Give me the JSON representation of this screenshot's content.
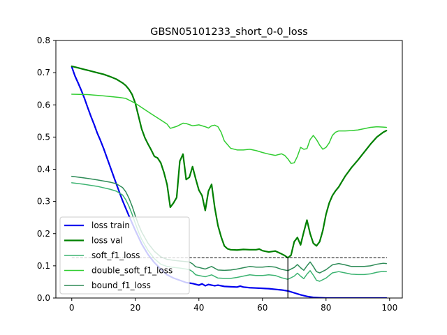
{
  "chart_data": {
    "type": "line",
    "title": "GBSN05101233_short_0-0_loss",
    "xlabel": "",
    "ylabel": "",
    "xlim": [
      -5,
      104
    ],
    "ylim": [
      0,
      0.8
    ],
    "xticks": [
      0,
      20,
      40,
      60,
      80,
      100
    ],
    "yticks": [
      0.0,
      0.1,
      0.2,
      0.3,
      0.4,
      0.5,
      0.6,
      0.7,
      0.8
    ],
    "xtick_labels": [
      "0",
      "20",
      "40",
      "60",
      "80",
      "100"
    ],
    "ytick_labels": [
      "0.0",
      "0.1",
      "0.2",
      "0.3",
      "0.4",
      "0.5",
      "0.6",
      "0.7",
      "0.8"
    ],
    "grid": false,
    "legend_position": "lower-left",
    "colors": {
      "loss_train": "#0000ee",
      "loss_val": "#008000",
      "soft_f1_loss": "#3cb371",
      "double_soft_f1_loss": "#32cd32",
      "bound_f1_loss": "#2e8b57",
      "reference": "#000000"
    },
    "reference_lines": {
      "horizontal_y": 0.125,
      "horizontal_x_start": 0,
      "vertical_x": 68
    },
    "series": [
      {
        "name": "loss train",
        "key": "loss_train",
        "x": [
          0,
          1,
          2,
          3,
          4,
          5,
          6,
          7,
          8,
          9,
          10,
          12,
          14,
          16,
          18,
          20,
          22,
          24,
          26,
          28,
          30,
          32,
          34,
          36,
          38,
          40,
          41,
          42,
          43,
          44,
          45,
          46,
          48,
          50,
          52,
          53,
          54,
          56,
          58,
          60,
          62,
          64,
          66,
          68,
          70,
          72,
          74,
          76,
          78,
          80,
          85,
          90,
          95,
          99
        ],
        "values": [
          0.718,
          0.69,
          0.668,
          0.645,
          0.62,
          0.592,
          0.565,
          0.54,
          0.513,
          0.49,
          0.465,
          0.41,
          0.355,
          0.302,
          0.255,
          0.21,
          0.168,
          0.135,
          0.11,
          0.09,
          0.072,
          0.062,
          0.055,
          0.048,
          0.045,
          0.04,
          0.044,
          0.038,
          0.042,
          0.04,
          0.038,
          0.04,
          0.036,
          0.035,
          0.034,
          0.037,
          0.034,
          0.032,
          0.031,
          0.03,
          0.029,
          0.027,
          0.025,
          0.022,
          0.016,
          0.01,
          0.005,
          0.002,
          0.001,
          0.0,
          0.0,
          0.0,
          0.0,
          0.0
        ]
      },
      {
        "name": "loss val",
        "key": "loss_val",
        "x": [
          0,
          2,
          4,
          6,
          8,
          10,
          12,
          14,
          16,
          17,
          18,
          19,
          20,
          21,
          22,
          23,
          24,
          25,
          26,
          27,
          28,
          29,
          30,
          31,
          32,
          33,
          34,
          35,
          36,
          37,
          38,
          39,
          40,
          41,
          42,
          43,
          44,
          45,
          46,
          47,
          48,
          49,
          50,
          52,
          54,
          56,
          58,
          59,
          60,
          62,
          64,
          66,
          67,
          68,
          69,
          70,
          71,
          72,
          73,
          74,
          75,
          76,
          77,
          78,
          79,
          80,
          81,
          82,
          83,
          84,
          86,
          88,
          90,
          92,
          94,
          96,
          98,
          99
        ],
        "values": [
          0.72,
          0.715,
          0.71,
          0.705,
          0.7,
          0.695,
          0.688,
          0.68,
          0.668,
          0.66,
          0.648,
          0.632,
          0.605,
          0.565,
          0.525,
          0.498,
          0.478,
          0.46,
          0.44,
          0.435,
          0.42,
          0.39,
          0.352,
          0.282,
          0.295,
          0.312,
          0.425,
          0.447,
          0.368,
          0.375,
          0.408,
          0.37,
          0.335,
          0.318,
          0.272,
          0.332,
          0.353,
          0.28,
          0.225,
          0.19,
          0.162,
          0.153,
          0.15,
          0.149,
          0.151,
          0.15,
          0.15,
          0.152,
          0.147,
          0.143,
          0.146,
          0.137,
          0.132,
          0.125,
          0.133,
          0.175,
          0.188,
          0.165,
          0.205,
          0.242,
          0.2,
          0.17,
          0.162,
          0.175,
          0.21,
          0.26,
          0.295,
          0.318,
          0.333,
          0.345,
          0.378,
          0.405,
          0.428,
          0.453,
          0.478,
          0.5,
          0.515,
          0.52
        ]
      },
      {
        "name": "soft_f1_loss",
        "key": "soft_f1_loss",
        "x": [
          0,
          4,
          8,
          12,
          14,
          16,
          17,
          18,
          19,
          20,
          21,
          22,
          24,
          26,
          28,
          30,
          32,
          34,
          36,
          37,
          38,
          39,
          40,
          42,
          44,
          46,
          48,
          50,
          52,
          54,
          56,
          58,
          60,
          62,
          64,
          66,
          68,
          70,
          71,
          72,
          73,
          74,
          75,
          76,
          77,
          78,
          80,
          82,
          84,
          86,
          88,
          90,
          92,
          94,
          96,
          98,
          99
        ],
        "values": [
          0.358,
          0.353,
          0.347,
          0.338,
          0.332,
          0.32,
          0.305,
          0.285,
          0.26,
          0.232,
          0.205,
          0.182,
          0.148,
          0.122,
          0.105,
          0.098,
          0.095,
          0.093,
          0.09,
          0.088,
          0.082,
          0.072,
          0.07,
          0.066,
          0.072,
          0.062,
          0.061,
          0.061,
          0.064,
          0.068,
          0.072,
          0.07,
          0.07,
          0.072,
          0.07,
          0.063,
          0.058,
          0.068,
          0.077,
          0.068,
          0.06,
          0.074,
          0.085,
          0.071,
          0.055,
          0.052,
          0.062,
          0.078,
          0.082,
          0.078,
          0.074,
          0.073,
          0.073,
          0.075,
          0.08,
          0.083,
          0.082
        ]
      },
      {
        "name": "double_soft_f1_loss",
        "key": "double_soft_f1_loss",
        "x": [
          0,
          5,
          10,
          15,
          17,
          20,
          25,
          28,
          30,
          31,
          33,
          35,
          36,
          38,
          40,
          42,
          43,
          44,
          45,
          46,
          47,
          48,
          50,
          52,
          54,
          56,
          58,
          60,
          62,
          64,
          66,
          67,
          68,
          69,
          70,
          71,
          72,
          73,
          74,
          75,
          76,
          77,
          78,
          79,
          80,
          81,
          82,
          83,
          84,
          86,
          88,
          90,
          92,
          94,
          96,
          98,
          99
        ],
        "values": [
          0.633,
          0.632,
          0.628,
          0.623,
          0.62,
          0.605,
          0.572,
          0.553,
          0.54,
          0.527,
          0.533,
          0.543,
          0.542,
          0.535,
          0.538,
          0.532,
          0.528,
          0.535,
          0.537,
          0.532,
          0.515,
          0.488,
          0.465,
          0.46,
          0.46,
          0.462,
          0.458,
          0.452,
          0.447,
          0.443,
          0.448,
          0.443,
          0.432,
          0.418,
          0.42,
          0.44,
          0.468,
          0.462,
          0.464,
          0.492,
          0.505,
          0.492,
          0.475,
          0.462,
          0.468,
          0.482,
          0.505,
          0.515,
          0.519,
          0.519,
          0.52,
          0.522,
          0.526,
          0.53,
          0.532,
          0.531,
          0.53
        ]
      },
      {
        "name": "bound_f1_loss",
        "key": "bound_f1_loss",
        "x": [
          0,
          4,
          8,
          12,
          14,
          16,
          17,
          18,
          19,
          20,
          21,
          22,
          24,
          26,
          28,
          30,
          32,
          34,
          36,
          37,
          38,
          39,
          40,
          42,
          44,
          46,
          48,
          50,
          52,
          54,
          56,
          58,
          60,
          62,
          64,
          66,
          68,
          70,
          71,
          72,
          73,
          74,
          75,
          76,
          77,
          78,
          80,
          82,
          84,
          86,
          88,
          90,
          92,
          94,
          96,
          98,
          99
        ],
        "values": [
          0.378,
          0.373,
          0.367,
          0.36,
          0.355,
          0.343,
          0.33,
          0.31,
          0.285,
          0.255,
          0.228,
          0.205,
          0.17,
          0.145,
          0.128,
          0.12,
          0.117,
          0.115,
          0.113,
          0.112,
          0.106,
          0.097,
          0.095,
          0.09,
          0.098,
          0.087,
          0.086,
          0.087,
          0.09,
          0.094,
          0.098,
          0.096,
          0.096,
          0.098,
          0.096,
          0.089,
          0.085,
          0.095,
          0.104,
          0.094,
          0.086,
          0.1,
          0.112,
          0.098,
          0.082,
          0.078,
          0.088,
          0.103,
          0.107,
          0.103,
          0.098,
          0.098,
          0.098,
          0.1,
          0.105,
          0.108,
          0.107
        ]
      }
    ]
  }
}
